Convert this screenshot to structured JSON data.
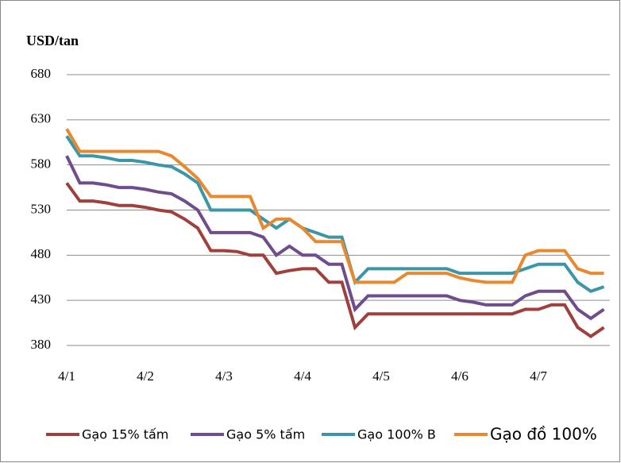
{
  "chart_data": {
    "type": "line",
    "ylabel": "USD/tan",
    "categories": [
      "4/1",
      null,
      null,
      null,
      null,
      null,
      "4/2",
      null,
      null,
      null,
      null,
      null,
      "4/3",
      null,
      null,
      null,
      null,
      null,
      "4/4",
      null,
      null,
      null,
      null,
      null,
      "4/5",
      null,
      null,
      null,
      null,
      null,
      "4/6",
      null,
      null,
      null,
      null,
      null,
      "4/7",
      null,
      null,
      null,
      null,
      null
    ],
    "series": [
      {
        "name": "Gạo 15% tấm",
        "color": "#a0403c",
        "values": [
          560,
          540,
          540,
          538,
          535,
          535,
          533,
          530,
          528,
          520,
          510,
          485,
          485,
          484,
          480,
          480,
          460,
          463,
          465,
          465,
          450,
          450,
          400,
          415,
          415,
          415,
          415,
          415,
          415,
          415,
          415,
          415,
          415,
          415,
          415,
          420,
          420,
          425,
          425,
          400,
          390,
          400
        ]
      },
      {
        "name": "Gạo 5% tấm",
        "color": "#6f4c8c",
        "values": [
          590,
          560,
          560,
          558,
          555,
          555,
          553,
          550,
          548,
          540,
          530,
          505,
          505,
          505,
          505,
          500,
          480,
          490,
          480,
          480,
          470,
          470,
          420,
          435,
          435,
          435,
          435,
          435,
          435,
          435,
          430,
          428,
          425,
          425,
          425,
          435,
          440,
          440,
          440,
          420,
          410,
          420
        ]
      },
      {
        "name": "Gạo 100% B",
        "color": "#3a96a8",
        "values": [
          612,
          590,
          590,
          588,
          585,
          585,
          583,
          580,
          578,
          570,
          560,
          530,
          530,
          530,
          530,
          520,
          510,
          520,
          510,
          505,
          500,
          500,
          450,
          465,
          465,
          465,
          465,
          465,
          465,
          465,
          460,
          460,
          460,
          460,
          460,
          465,
          470,
          470,
          470,
          450,
          440,
          445
        ]
      },
      {
        "name": "Gạo đồ 100%",
        "color": "#e8892f",
        "values": [
          620,
          595,
          595,
          595,
          595,
          595,
          595,
          595,
          590,
          578,
          565,
          545,
          545,
          545,
          545,
          510,
          520,
          520,
          510,
          495,
          495,
          495,
          450,
          450,
          450,
          450,
          460,
          460,
          460,
          460,
          455,
          452,
          450,
          450,
          450,
          480,
          485,
          485,
          485,
          465,
          460,
          460
        ]
      }
    ],
    "ylim": [
      380,
      680
    ],
    "yticks": [
      380,
      430,
      480,
      530,
      580,
      630,
      680
    ],
    "grid": true
  }
}
